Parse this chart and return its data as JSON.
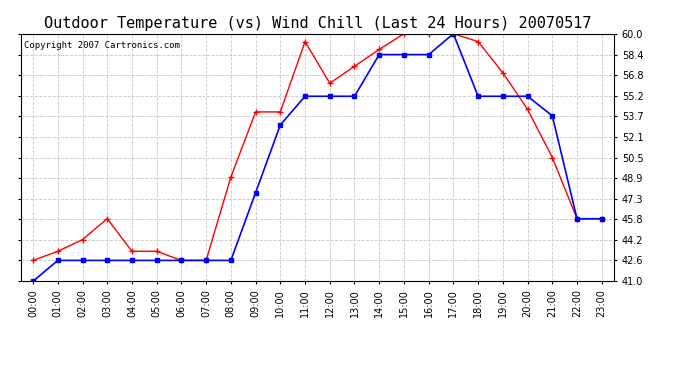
{
  "title": "Outdoor Temperature (vs) Wind Chill (Last 24 Hours) 20070517",
  "copyright": "Copyright 2007 Cartronics.com",
  "hours": [
    "00:00",
    "01:00",
    "02:00",
    "03:00",
    "04:00",
    "05:00",
    "06:00",
    "07:00",
    "08:00",
    "09:00",
    "10:00",
    "11:00",
    "12:00",
    "13:00",
    "14:00",
    "15:00",
    "16:00",
    "17:00",
    "18:00",
    "19:00",
    "20:00",
    "21:00",
    "22:00",
    "23:00"
  ],
  "temp": [
    42.6,
    43.3,
    44.2,
    45.8,
    43.3,
    43.3,
    42.6,
    42.6,
    49.0,
    54.0,
    54.0,
    59.4,
    56.2,
    57.5,
    58.8,
    60.0,
    60.0,
    60.0,
    59.4,
    57.0,
    54.2,
    50.5,
    45.8,
    45.8
  ],
  "wind_chill": [
    41.0,
    42.6,
    42.6,
    42.6,
    42.6,
    42.6,
    42.6,
    42.6,
    42.6,
    47.8,
    53.0,
    55.2,
    55.2,
    55.2,
    58.4,
    58.4,
    58.4,
    60.0,
    55.2,
    55.2,
    55.2,
    53.7,
    45.8,
    45.8
  ],
  "temp_color": "#ff0000",
  "wind_chill_color": "#0000ff",
  "bg_color": "#ffffff",
  "grid_color": "#c8c8c8",
  "ylim": [
    41.0,
    60.0
  ],
  "yticks": [
    41.0,
    42.6,
    44.2,
    45.8,
    47.3,
    48.9,
    50.5,
    52.1,
    53.7,
    55.2,
    56.8,
    58.4,
    60.0
  ],
  "title_fontsize": 11,
  "copyright_fontsize": 6.5,
  "tick_fontsize": 7,
  "marker_size": 3
}
